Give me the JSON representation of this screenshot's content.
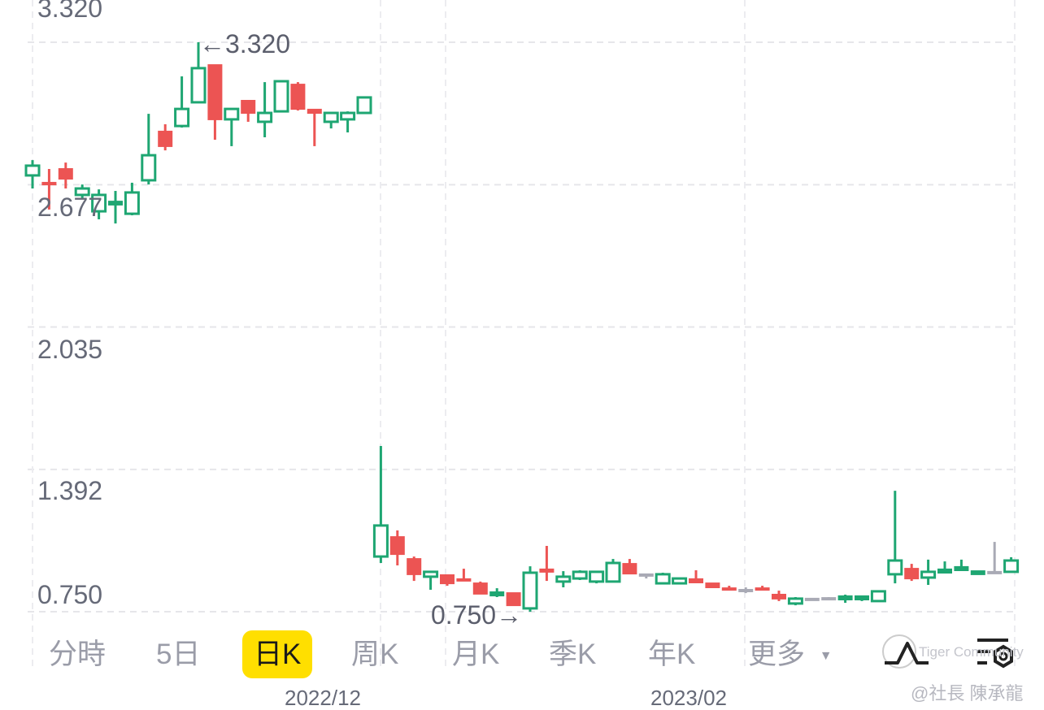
{
  "chart_data": {
    "type": "candlestick",
    "y_ticks": [
      "3.320",
      "2.677",
      "2.035",
      "1.392",
      "0.750"
    ],
    "ylim": [
      0.69,
      3.51
    ],
    "x_tick_labels": [
      "2022/12",
      "2023/02"
    ],
    "grid": true,
    "colors": {
      "up": "#1ea672",
      "down": "#ec5453",
      "flat": "#a9aab5"
    },
    "annotations": {
      "high": "←3.320",
      "low": "0.750→"
    },
    "candles": [
      [
        2.719,
        2.788,
        2.66,
        2.763
      ],
      [
        2.686,
        2.748,
        2.565,
        2.678
      ],
      [
        2.748,
        2.777,
        2.66,
        2.704
      ],
      [
        2.631,
        2.678,
        2.612,
        2.66
      ],
      [
        2.557,
        2.656,
        2.521,
        2.631
      ],
      [
        2.587,
        2.649,
        2.502,
        2.601
      ],
      [
        2.546,
        2.686,
        2.539,
        2.642
      ],
      [
        2.697,
        2.997,
        2.678,
        2.81
      ],
      [
        2.917,
        2.95,
        2.832,
        2.851
      ],
      [
        2.942,
        3.166,
        2.935,
        3.019
      ],
      [
        3.049,
        3.32,
        3.049,
        3.203
      ],
      [
        3.217,
        3.217,
        2.88,
        2.972
      ],
      [
        2.972,
        3.019,
        2.851,
        3.019
      ],
      [
        3.056,
        3.056,
        2.961,
        3.001
      ],
      [
        2.961,
        3.14,
        2.891,
        3.001
      ],
      [
        3.008,
        3.148,
        3.008,
        3.144
      ],
      [
        3.129,
        3.14,
        3.012,
        3.019
      ],
      [
        3.016,
        3.016,
        2.851,
        3.001
      ],
      [
        2.961,
        3.001,
        2.931,
        3.001
      ],
      [
        2.972,
        3.008,
        2.913,
        3.001
      ],
      [
        3.001,
        3.071,
        3.001,
        3.071
      ],
      [
        0.999,
        1.498,
        0.97,
        1.139
      ],
      [
        1.087,
        1.117,
        0.959,
        1.01
      ],
      [
        0.988,
        0.999,
        0.889,
        0.919
      ],
      [
        0.908,
        0.93,
        0.849,
        0.93
      ],
      [
        0.915,
        0.915,
        0.867,
        0.878
      ],
      [
        0.897,
        0.944,
        0.893,
        0.893
      ],
      [
        0.878,
        0.886,
        0.831,
        0.831
      ],
      [
        0.823,
        0.856,
        0.816,
        0.838
      ],
      [
        0.834,
        0.834,
        0.779,
        0.779
      ],
      [
        0.765,
        0.955,
        0.75,
        0.926
      ],
      [
        0.941,
        1.047,
        0.889,
        0.93
      ],
      [
        0.886,
        0.933,
        0.86,
        0.908
      ],
      [
        0.9,
        0.937,
        0.893,
        0.93
      ],
      [
        0.886,
        0.93,
        0.878,
        0.93
      ],
      [
        0.886,
        0.988,
        0.886,
        0.97
      ],
      [
        0.966,
        0.988,
        0.922,
        0.922
      ],
      [
        0.919,
        0.919,
        0.9,
        0.919
      ],
      [
        0.878,
        0.926,
        0.878,
        0.919
      ],
      [
        0.878,
        0.9,
        0.878,
        0.9
      ],
      [
        0.897,
        0.937,
        0.882,
        0.882
      ],
      [
        0.878,
        0.878,
        0.86,
        0.86
      ],
      [
        0.856,
        0.867,
        0.849,
        0.849
      ],
      [
        0.849,
        0.86,
        0.834,
        0.849
      ],
      [
        0.856,
        0.867,
        0.849,
        0.849
      ],
      [
        0.827,
        0.845,
        0.798,
        0.809
      ],
      [
        0.787,
        0.816,
        0.779,
        0.809
      ],
      [
        0.809,
        0.812,
        0.805,
        0.809
      ],
      [
        0.812,
        0.816,
        0.812,
        0.812
      ],
      [
        0.805,
        0.827,
        0.79,
        0.82
      ],
      [
        0.805,
        0.82,
        0.798,
        0.82
      ],
      [
        0.798,
        0.842,
        0.798,
        0.842
      ],
      [
        0.919,
        1.296,
        0.878,
        0.981
      ],
      [
        0.944,
        0.966,
        0.889,
        0.9
      ],
      [
        0.904,
        0.985,
        0.871,
        0.93
      ],
      [
        0.926,
        0.977,
        0.926,
        0.941
      ],
      [
        0.937,
        0.985,
        0.937,
        0.952
      ],
      [
        0.919,
        0.933,
        0.919,
        0.933
      ],
      [
        0.93,
        1.065,
        0.926,
        0.93
      ],
      [
        0.93,
        0.996,
        0.93,
        0.981
      ]
    ]
  },
  "tabs": [
    {
      "label": "分時",
      "active": false
    },
    {
      "label": "5日",
      "active": false
    },
    {
      "label": "日K",
      "active": true
    },
    {
      "label": "周K",
      "active": false
    },
    {
      "label": "月K",
      "active": false
    },
    {
      "label": "季K",
      "active": false
    },
    {
      "label": "年K",
      "active": false
    },
    {
      "label": "更多",
      "active": false
    }
  ],
  "more_arrow": "▼",
  "icons": {
    "indicator": "indicator-icon",
    "settings": "settings-icon"
  },
  "watermark": {
    "brand": "Tiger Community",
    "author": "@社長 陳承龍"
  }
}
